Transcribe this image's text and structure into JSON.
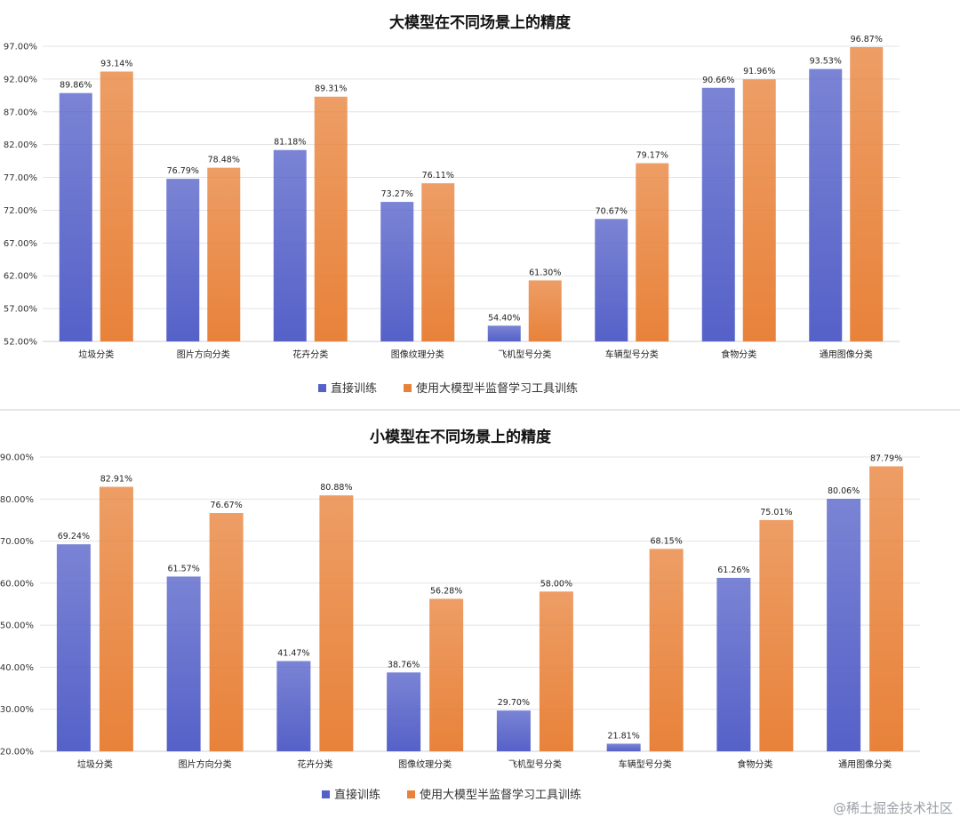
{
  "colors": {
    "direct": "#5561c8",
    "semi": "#e8823a"
  },
  "watermark": "@稀土掘金技术社区",
  "chart_data": [
    {
      "type": "bar",
      "title": "大模型在不同场景上的精度",
      "categories": [
        "垃圾分类",
        "图片方向分类",
        "花卉分类",
        "图像纹理分类",
        "飞机型号分类",
        "车辆型号分类",
        "食物分类",
        "通用图像分类"
      ],
      "series": [
        {
          "name": "直接训练",
          "values": [
            89.86,
            76.79,
            81.18,
            73.27,
            54.4,
            70.67,
            90.66,
            93.53
          ]
        },
        {
          "name": "使用大模型半监督学习工具训练",
          "values": [
            93.14,
            78.48,
            89.31,
            76.11,
            61.3,
            79.17,
            91.96,
            96.87
          ]
        }
      ],
      "ylim": [
        52,
        97
      ],
      "yticks": [
        "52.00%",
        "57.00%",
        "62.00%",
        "67.00%",
        "72.00%",
        "77.00%",
        "82.00%",
        "87.00%",
        "92.00%",
        "97.00%"
      ],
      "data_labels": [
        [
          "89.86%",
          "76.79%",
          "81.18%",
          "73.27%",
          "54.40%",
          "70.67%",
          "90.66%",
          "93.53%"
        ],
        [
          "93.14%",
          "78.48%",
          "89.31%",
          "76.11%",
          "61.30%",
          "79.17%",
          "91.96%",
          "96.87%"
        ]
      ],
      "legend": "bottom",
      "grid": true
    },
    {
      "type": "bar",
      "title": "小模型在不同场景上的精度",
      "categories": [
        "垃圾分类",
        "图片方向分类",
        "花卉分类",
        "图像纹理分类",
        "飞机型号分类",
        "车辆型号分类",
        "食物分类",
        "通用图像分类"
      ],
      "series": [
        {
          "name": "直接训练",
          "values": [
            69.24,
            61.57,
            41.47,
            38.76,
            29.7,
            21.81,
            61.26,
            80.06
          ]
        },
        {
          "name": "使用大模型半监督学习工具训练",
          "values": [
            82.91,
            76.67,
            80.88,
            56.28,
            58.0,
            68.15,
            75.01,
            87.79
          ]
        }
      ],
      "ylim": [
        20,
        90
      ],
      "yticks": [
        "20.00%",
        "30.00%",
        "40.00%",
        "50.00%",
        "60.00%",
        "70.00%",
        "80.00%",
        "90.00%"
      ],
      "data_labels": [
        [
          "69.24%",
          "61.57%",
          "41.47%",
          "38.76%",
          "29.70%",
          "21.81%",
          "61.26%",
          "80.06%"
        ],
        [
          "82.91%",
          "76.67%",
          "80.88%",
          "56.28%",
          "58.00%",
          "68.15%",
          "75.01%",
          "87.79%"
        ]
      ],
      "legend": "bottom",
      "grid": true
    }
  ]
}
